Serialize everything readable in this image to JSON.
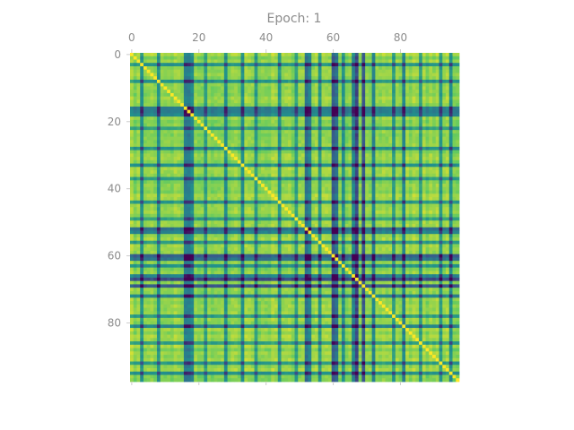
{
  "chart_data": {
    "type": "heatmap",
    "title": "Epoch: 1",
    "xlabel": "",
    "ylabel": "",
    "n_rows": 98,
    "n_cols": 98,
    "x_axis_position": "top",
    "x_ticks": [
      0,
      20,
      40,
      60,
      80
    ],
    "y_ticks": [
      0,
      20,
      40,
      60,
      80
    ],
    "x_tick_labels": [
      "0",
      "20",
      "40",
      "60",
      "80"
    ],
    "y_tick_labels": [
      "0",
      "20",
      "40",
      "60",
      "80"
    ],
    "colormap": "viridis",
    "value_range": [
      0,
      1
    ],
    "grid": false,
    "legend": "none",
    "structure": "symmetric similarity matrix: mostly high (yellow) with recurring lower-similarity (green/blue) row and column bands",
    "band_indices": [
      3,
      8,
      16,
      17,
      18,
      22,
      28,
      33,
      37,
      44,
      49,
      52,
      53,
      56,
      60,
      61,
      63,
      66,
      67,
      69,
      72,
      78,
      81,
      86,
      92,
      95
    ],
    "band_strengths": [
      0.35,
      0.3,
      0.4,
      0.45,
      0.35,
      0.3,
      0.3,
      0.35,
      0.3,
      0.3,
      0.3,
      0.45,
      0.35,
      0.3,
      0.55,
      0.45,
      0.35,
      0.35,
      0.6,
      0.55,
      0.35,
      0.3,
      0.35,
      0.3,
      0.3,
      0.3
    ],
    "colors": {
      "high": "#f2e51d",
      "mid": "#2db27d",
      "low": "#3b528b"
    }
  }
}
